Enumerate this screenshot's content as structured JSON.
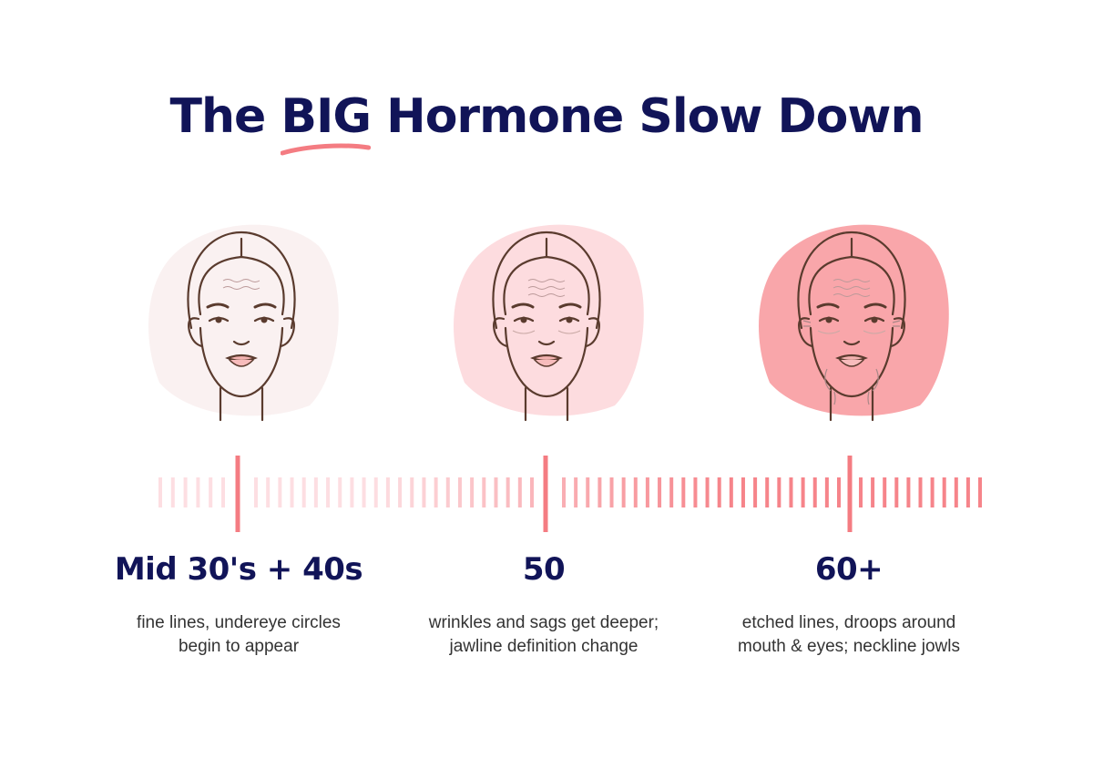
{
  "title": {
    "before": "The ",
    "highlight": "BIG",
    "after": " Hormone Slow Down"
  },
  "colors": {
    "navy": "#111458",
    "accent": "#f47c82",
    "blob_light": "#faf1f1",
    "blob_mid": "#fddcdf",
    "blob_dark": "#f9a6aa",
    "line": "#5a3b2e"
  },
  "stages": [
    {
      "age": "Mid 30's + 40s",
      "line1": "fine lines, undereye circles",
      "line2": "begin to appear"
    },
    {
      "age": "50",
      "line1": "wrinkles and sags get deeper;",
      "line2": "jawline definition change"
    },
    {
      "age": "60+",
      "line1": "etched lines, droops around",
      "line2": "mouth & eyes; neckline jowls"
    }
  ]
}
